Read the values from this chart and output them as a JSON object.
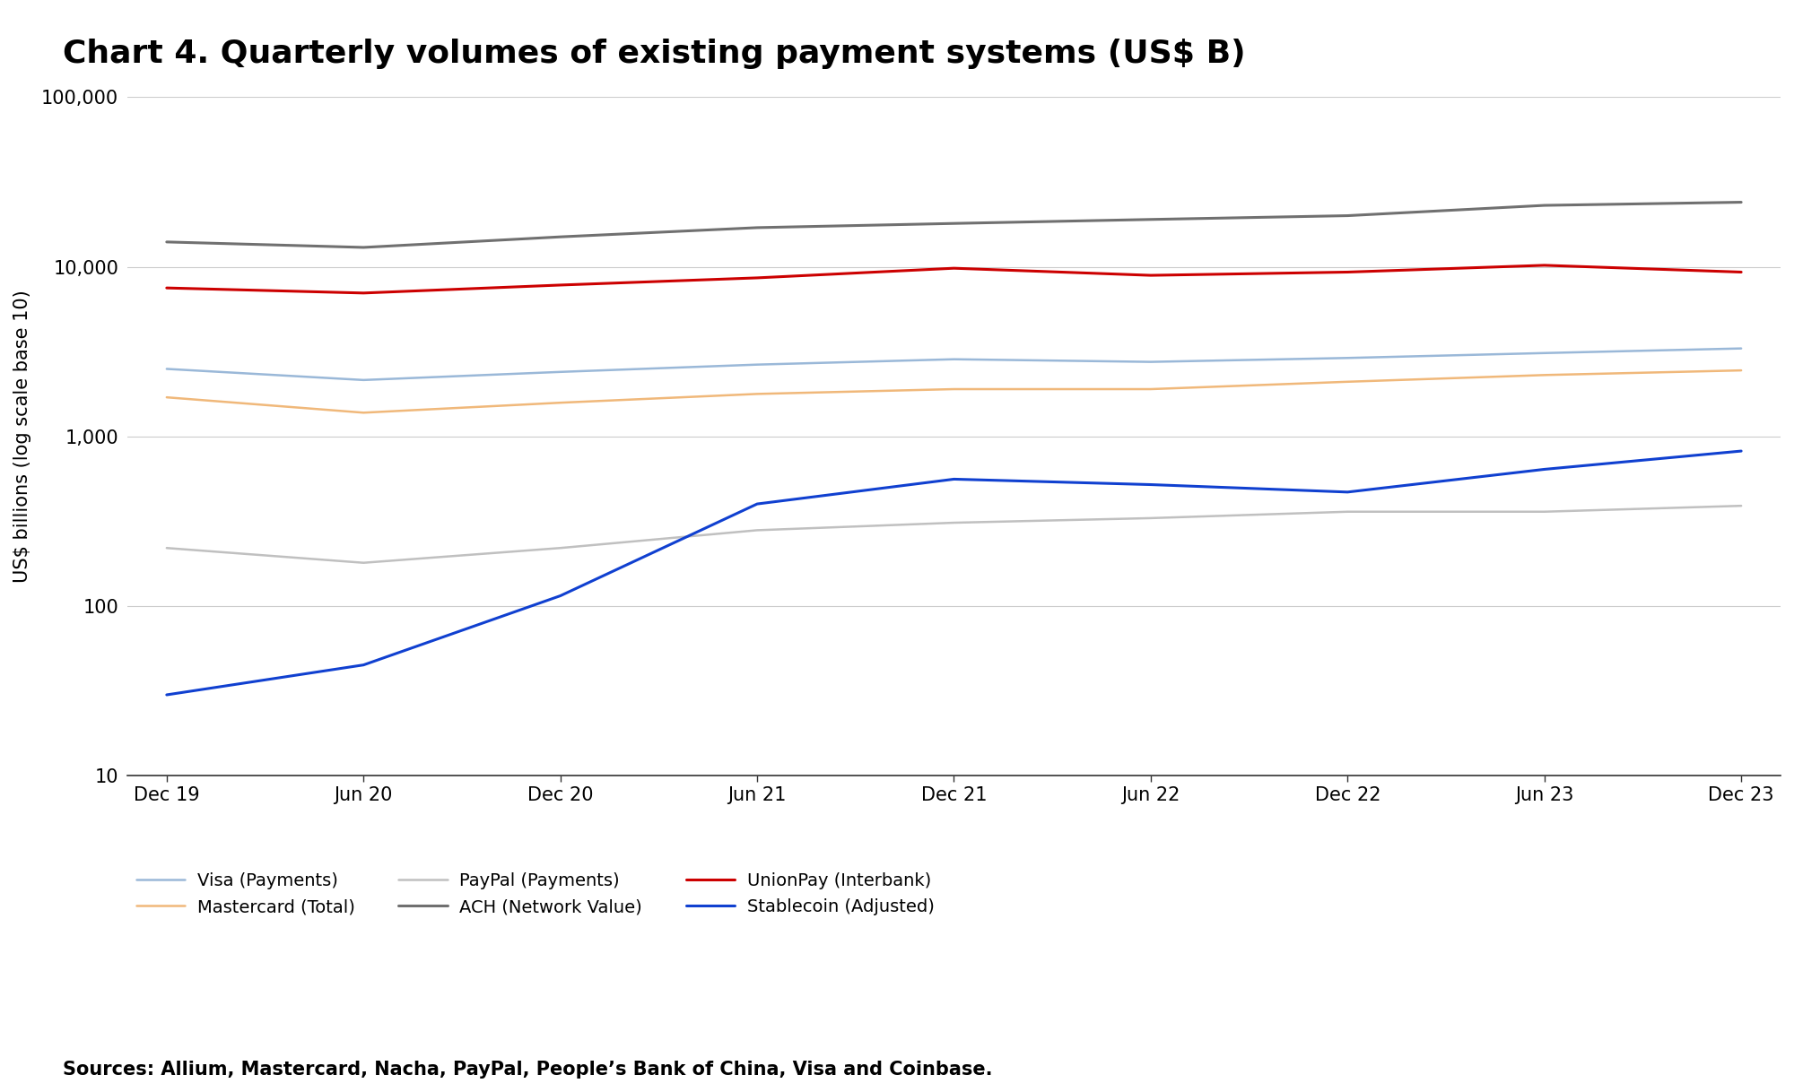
{
  "title": "Chart 4. Quarterly volumes of existing payment systems (US$ B)",
  "ylabel": "US$ billions (log scale base 10)",
  "source": "Sources: Allium, Mastercard, Nacha, PayPal, People’s Bank of China, Visa and Coinbase.",
  "x_labels": [
    "Dec 19",
    "Jun 20",
    "Dec 20",
    "Jun 21",
    "Dec 21",
    "Jun 22",
    "Dec 22",
    "Jun 23",
    "Dec 23"
  ],
  "x_positions": [
    0,
    1,
    2,
    3,
    4,
    5,
    6,
    7,
    8
  ],
  "series": [
    {
      "name": "Visa (Payments)",
      "color": "#9ab8d8",
      "linewidth": 1.8,
      "values": [
        2500,
        2150,
        2400,
        2650,
        2850,
        2750,
        2900,
        3100,
        3300
      ]
    },
    {
      "name": "Mastercard (Total)",
      "color": "#f0b87a",
      "linewidth": 1.8,
      "values": [
        1700,
        1380,
        1580,
        1780,
        1900,
        1900,
        2100,
        2300,
        2450
      ]
    },
    {
      "name": "PayPal (Payments)",
      "color": "#c0c0c0",
      "linewidth": 1.8,
      "values": [
        220,
        180,
        220,
        280,
        310,
        330,
        360,
        360,
        390
      ]
    },
    {
      "name": "ACH (Network Value)",
      "color": "#707070",
      "linewidth": 2.2,
      "values": [
        14000,
        13000,
        15000,
        17000,
        18000,
        19000,
        20000,
        23000,
        24000
      ]
    },
    {
      "name": "UnionPay (Interbank)",
      "color": "#cc0000",
      "linewidth": 2.2,
      "values": [
        7500,
        7000,
        7800,
        8600,
        9800,
        8900,
        9300,
        10200,
        9300
      ]
    },
    {
      "name": "Stablecoin (Adjusted)",
      "color": "#1040d0",
      "linewidth": 2.2,
      "values": [
        30,
        45,
        115,
        400,
        560,
        520,
        470,
        640,
        820
      ]
    }
  ],
  "ylim": [
    10,
    100000
  ],
  "background_color": "#ffffff",
  "grid_color": "#cccccc",
  "title_fontsize": 26,
  "label_fontsize": 15,
  "tick_fontsize": 15,
  "legend_fontsize": 14,
  "source_fontsize": 15
}
